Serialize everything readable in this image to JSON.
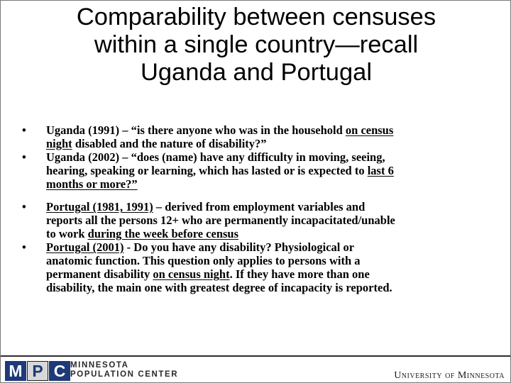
{
  "slide": {
    "title_lines": [
      "Comparability between censuses",
      "within a single country—recall",
      "Uganda and Portugal"
    ],
    "bullet_symbol": "•",
    "groups": [
      {
        "items": [
          {
            "lines": [
              [
                "Uganda (1991) – “is there anyone who was in the household ",
                "on census"
              ],
              [
                "night",
                " disabled and the nature of disability?”"
              ]
            ]
          },
          {
            "lines": [
              [
                "Uganda (2002) – “does (name) have any difficulty in moving, seeing,"
              ],
              [
                "hearing, speaking or learning, which has lasted or is expected to ",
                "last 6"
              ],
              [
                "months or more?”"
              ]
            ]
          }
        ]
      },
      {
        "items": [
          {
            "lines": [
              [
                "Portugal (1981, 1991)",
                " – derived from employment variables and"
              ],
              [
                "reports all the persons 12+ who are permanently incapacitated/unable"
              ],
              [
                "to work ",
                "during the week before census"
              ]
            ]
          },
          {
            "lines": [
              [
                "Portugal (2001)",
                " - Do you have any disability? Physiological or"
              ],
              [
                "anatomic function. This question only applies to persons with a"
              ],
              [
                "permanent disability ",
                "on census night",
                ". If they have more than one"
              ],
              [
                "disability, the main one with greatest degree of incapacity is reported."
              ]
            ]
          }
        ]
      }
    ]
  },
  "footer": {
    "mpc_letters": [
      "M",
      "P",
      "C"
    ],
    "mpc_line1": "MINNESOTA",
    "mpc_line2": "POPULATION CENTER",
    "university": "University of Minnesota"
  },
  "colors": {
    "logo_blue": "#1e3a78",
    "logo_gray": "#d8d8d8"
  }
}
